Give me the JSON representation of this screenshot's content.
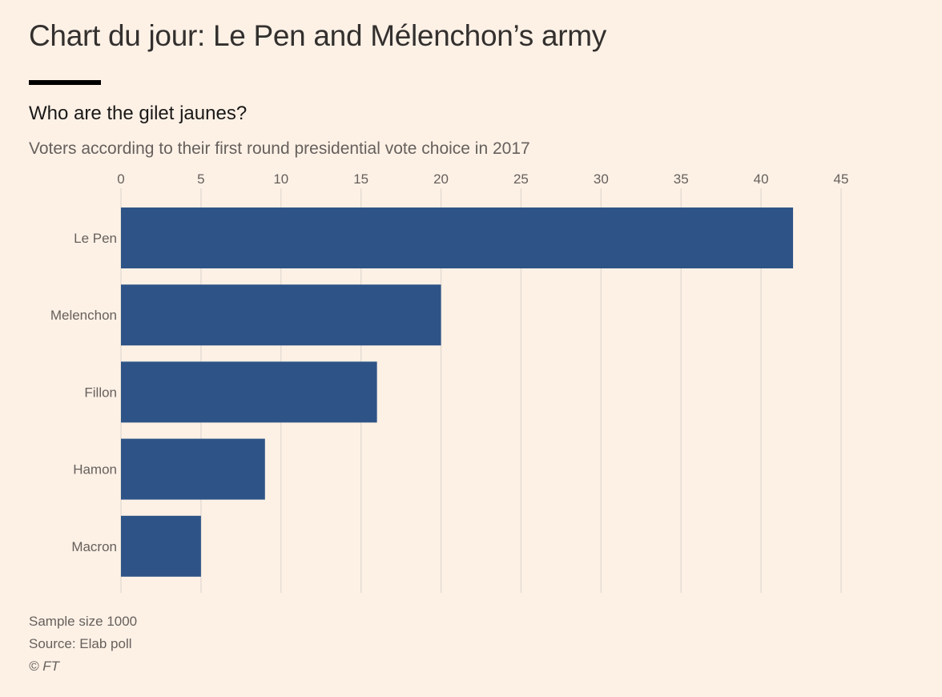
{
  "header": {
    "title": "Chart du jour: Le Pen and Mélenchon’s army"
  },
  "chart_data": {
    "type": "bar",
    "orientation": "horizontal",
    "title": "Who are the gilet jaunes?",
    "subtitle": "Voters according to their first round presidential vote choice in 2017",
    "categories": [
      "Le Pen",
      "Melenchon",
      "Fillon",
      "Hamon",
      "Macron"
    ],
    "values": [
      42,
      20,
      16,
      9,
      5
    ],
    "xlabel": "",
    "ylabel": "",
    "xlim": [
      0,
      45
    ],
    "xticks": [
      0,
      5,
      10,
      15,
      20,
      25,
      30,
      35,
      40,
      45
    ],
    "x_axis_position": "top",
    "grid": true,
    "bar_color": "#2e5487",
    "grid_color": "#e0d8cf"
  },
  "footer": {
    "sample": "Sample size 1000",
    "source": "Source: Elab poll",
    "copyright": "© FT"
  }
}
